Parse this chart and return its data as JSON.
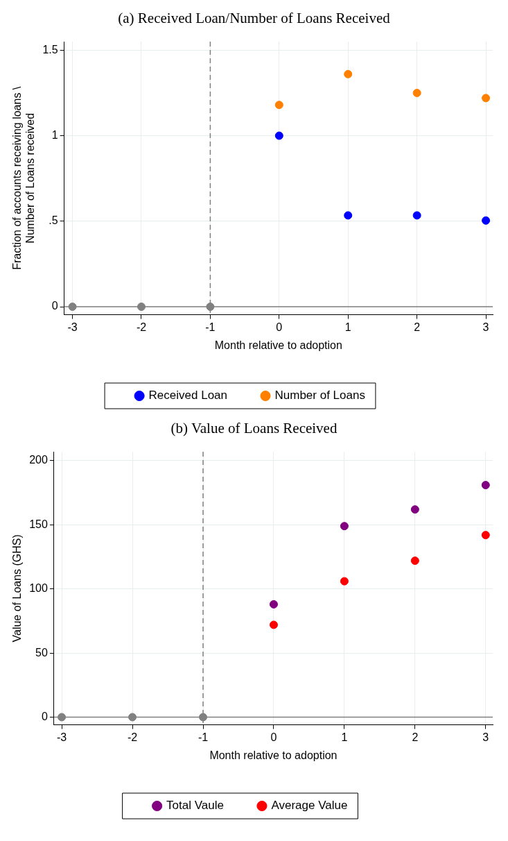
{
  "chart_data": [
    {
      "type": "scatter",
      "title": "(a)  Received Loan/Number of Loans Received",
      "xlabel": "Month relative to adoption",
      "ylabel": "Fraction of accounts receiving loans \\\nNumber of Loans received",
      "series": [
        {
          "name": "Received Loan",
          "color": "#0000ff",
          "x": [
            0,
            1,
            2,
            3
          ],
          "values": [
            1.0,
            0.534,
            0.534,
            0.504
          ]
        },
        {
          "name": "Number of Loans",
          "color": "#ff8000",
          "x": [
            0,
            1,
            2,
            3
          ],
          "values": [
            1.18,
            1.36,
            1.25,
            1.22
          ]
        },
        {
          "color": "#808080",
          "x": [
            -3,
            -2,
            -1
          ],
          "values": [
            0,
            0,
            0
          ]
        }
      ],
      "xlim": [
        -3.12,
        3.1
      ],
      "xticks": [
        -3,
        -2,
        -1,
        0,
        1,
        2,
        3
      ],
      "ylim": [
        -0.047,
        1.55
      ],
      "yticks": [
        0,
        {
          "value": 0.5,
          "label": ".5"
        },
        1,
        1.5
      ],
      "ref_lines": [
        {
          "axis": "x",
          "value": -1,
          "color": "#808080",
          "line_style": "dashed"
        },
        {
          "axis": "y",
          "value": 0,
          "color": "#808080",
          "line_style": "solid"
        }
      ],
      "grid": true,
      "legend": "bottom",
      "marker": "circle"
    },
    {
      "type": "scatter",
      "title": "(b)  Value of Loans Received",
      "xlabel": "Month relative to adoption",
      "ylabel": "Value of Loans (GHS)",
      "series": [
        {
          "name": "Total Vaule",
          "color": "#800080",
          "x": [
            0,
            1,
            2,
            3
          ],
          "values": [
            88,
            149,
            162,
            181
          ]
        },
        {
          "name": "Average Value",
          "color": "#ff0000",
          "x": [
            0,
            1,
            2,
            3
          ],
          "values": [
            72,
            106,
            122,
            142
          ]
        },
        {
          "color": "#808080",
          "x": [
            -3,
            -2,
            -1
          ],
          "values": [
            0,
            0,
            0
          ]
        }
      ],
      "xlim": [
        -3.11,
        3.1
      ],
      "xticks": [
        -3,
        -2,
        -1,
        0,
        1,
        2,
        3
      ],
      "ylim": [
        -6,
        207
      ],
      "yticks": [
        0,
        50,
        100,
        150,
        200
      ],
      "ref_lines": [
        {
          "axis": "x",
          "value": -1,
          "color": "#808080",
          "line_style": "dashed"
        },
        {
          "axis": "y",
          "value": 0,
          "color": "#808080",
          "line_style": "solid"
        }
      ],
      "grid": true,
      "legend": "bottom",
      "marker": "circle"
    }
  ]
}
